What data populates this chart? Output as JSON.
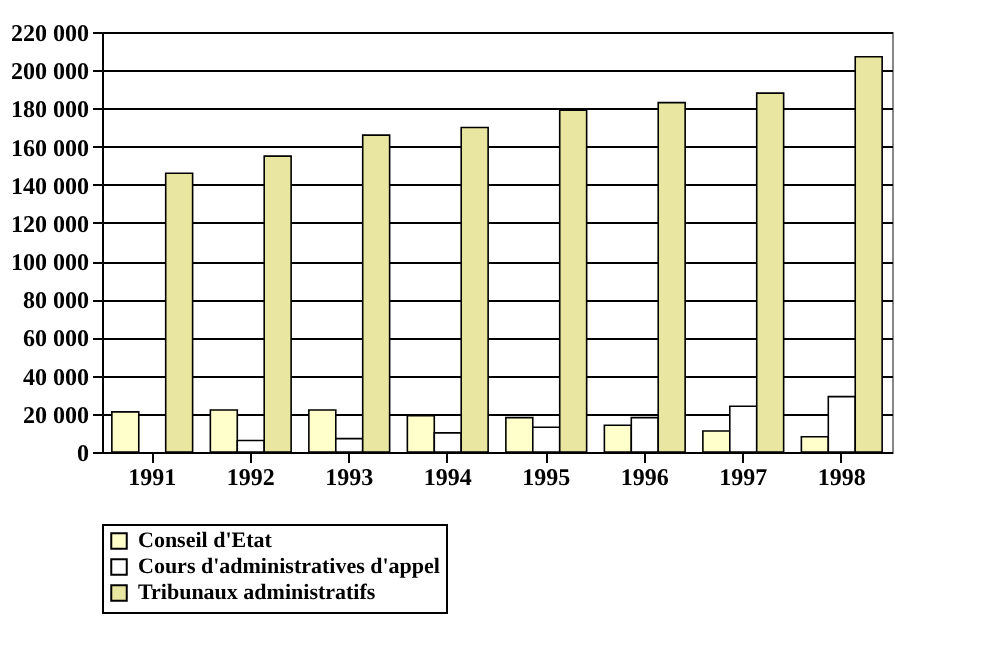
{
  "chart_data": {
    "type": "bar",
    "categories": [
      "1991",
      "1992",
      "1993",
      "1994",
      "1995",
      "1996",
      "1997",
      "1998"
    ],
    "series": [
      {
        "name": "Conseil d'Etat",
        "color": "#ffffcc",
        "values": [
          21000,
          22000,
          22000,
          19000,
          18000,
          14000,
          11000,
          8000
        ]
      },
      {
        "name": "Cours d'administratives d'appel",
        "color": "#ffffff",
        "values": [
          null,
          6000,
          7000,
          10000,
          13000,
          18000,
          24000,
          29000
        ]
      },
      {
        "name": "Tribunaux administratifs",
        "color": "#e8e6a0",
        "values": [
          146000,
          155000,
          166000,
          170000,
          179000,
          183000,
          188000,
          207000
        ]
      }
    ],
    "ylim": [
      0,
      220000
    ],
    "yticks": [
      {
        "value": 0,
        "label": "0"
      },
      {
        "value": 20000,
        "label": "20 000"
      },
      {
        "value": 40000,
        "label": "40 000"
      },
      {
        "value": 60000,
        "label": "60 000"
      },
      {
        "value": 80000,
        "label": "80 000"
      },
      {
        "value": 100000,
        "label": "100 000"
      },
      {
        "value": 120000,
        "label": "120 000"
      },
      {
        "value": 140000,
        "label": "140 000"
      },
      {
        "value": 160000,
        "label": "160 000"
      },
      {
        "value": 180000,
        "label": "180 000"
      },
      {
        "value": 200000,
        "label": "200 000"
      },
      {
        "value": 220000,
        "label": "220 000"
      }
    ],
    "grid": "y",
    "legend": "bottom"
  }
}
